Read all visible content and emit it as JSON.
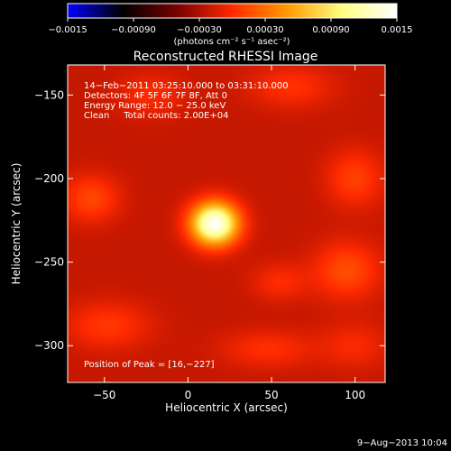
{
  "chart_data": {
    "type": "heatmap",
    "title": "Reconstructed RHESSI Image",
    "xlabel": "Heliocentric X (arcsec)",
    "ylabel": "Heliocentric Y (arcsec)",
    "xlim": [
      -72,
      118
    ],
    "ylim": [
      -322,
      -132
    ],
    "x_ticks": [
      -50,
      0,
      50,
      100
    ],
    "x_tick_labels": [
      "−50",
      "0",
      "50",
      "100"
    ],
    "y_ticks": [
      -150,
      -200,
      -250,
      -300
    ],
    "y_tick_labels": [
      "−150",
      "−200",
      "−250",
      "−300"
    ],
    "grid": false,
    "colorbar": {
      "range": [
        -0.0015,
        0.0015
      ],
      "ticks": [
        -0.0015,
        -0.0009,
        -0.0003,
        0.0003,
        0.0009,
        0.0015
      ],
      "tick_labels": [
        "−0.0015",
        "−0.00090",
        "−0.00030",
        "0.00030",
        "0.00090",
        "0.0015"
      ],
      "units": "(photons cm⁻² s⁻¹ asec⁻²)",
      "colormap": [
        "#0000ff",
        "#000000",
        "#7a0000",
        "#ff2a00",
        "#ff9a00",
        "#ffff80",
        "#ffffff"
      ]
    },
    "annotations": [
      "14−Feb−2011 03:25:10.000 to 03:31:10.000",
      "Detectors: 4F 5F 6F 7F 8F, Att 0",
      "Energy Range: 12.0 − 25.0 keV",
      "Clean     Total counts: 2.00E+04"
    ],
    "peak_label": "Position of Peak = [16,−227]",
    "peak": {
      "x": 16,
      "y": -227,
      "value": 0.0015
    },
    "background_value": -0.00022,
    "sources": [
      {
        "x": 16,
        "y": -227,
        "sx": 10,
        "sy": 9,
        "amp": 0.0017
      },
      {
        "x": -58,
        "y": -212,
        "sx": 12,
        "sy": 10,
        "amp": 0.00035
      },
      {
        "x": -48,
        "y": -288,
        "sx": 18,
        "sy": 10,
        "amp": 0.00028
      },
      {
        "x": -22,
        "y": -150,
        "sx": 14,
        "sy": 9,
        "amp": 0.00022
      },
      {
        "x": 62,
        "y": -145,
        "sx": 18,
        "sy": 9,
        "amp": 0.00025
      },
      {
        "x": 100,
        "y": -200,
        "sx": 12,
        "sy": 12,
        "amp": 0.00032
      },
      {
        "x": 95,
        "y": -255,
        "sx": 14,
        "sy": 12,
        "amp": 0.00038
      },
      {
        "x": 55,
        "y": -262,
        "sx": 12,
        "sy": 8,
        "amp": 0.00022
      },
      {
        "x": 48,
        "y": -302,
        "sx": 20,
        "sy": 8,
        "amp": 0.00024
      },
      {
        "x": 100,
        "y": -300,
        "sx": 14,
        "sy": 10,
        "amp": 0.0002
      }
    ]
  },
  "footer": {
    "timestamp": "9−Aug−2013 10:04"
  }
}
